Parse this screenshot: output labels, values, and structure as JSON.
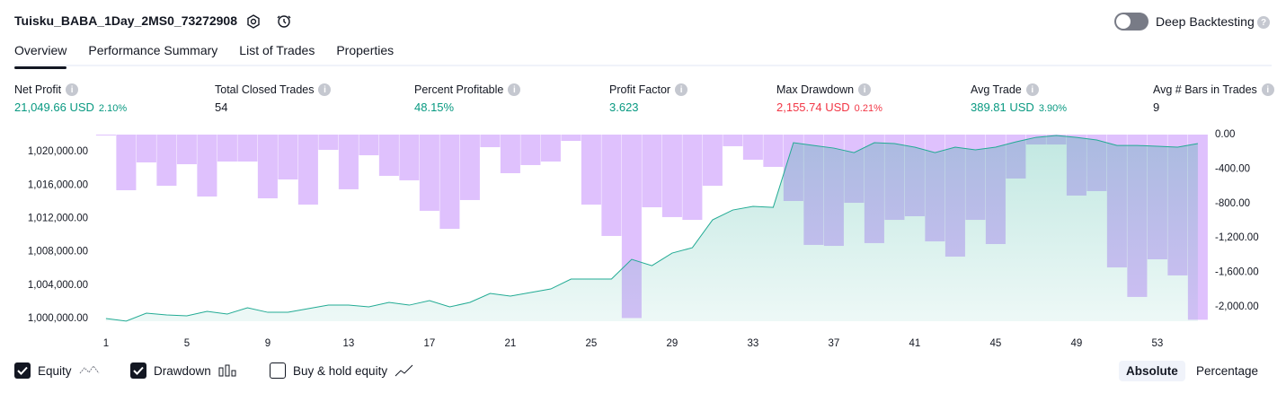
{
  "header": {
    "title": "Tuisku_BABA_1Day_2MS0_73272908",
    "toggle_label": "Deep Backtesting"
  },
  "tabs": [
    "Overview",
    "Performance Summary",
    "List of Trades",
    "Properties"
  ],
  "active_tab": 0,
  "metrics": [
    {
      "label": "Net Profit",
      "value": "21,049.66 USD",
      "percent": "2.10%",
      "color": "#089981"
    },
    {
      "label": "Total Closed Trades",
      "value": "54",
      "color": "#131722"
    },
    {
      "label": "Percent Profitable",
      "value": "48.15%",
      "color": "#089981"
    },
    {
      "label": "Profit Factor",
      "value": "3.623",
      "color": "#089981"
    },
    {
      "label": "Max Drawdown",
      "value": "2,155.74 USD",
      "percent": "0.21%",
      "color": "#f23645"
    },
    {
      "label": "Avg Trade",
      "value": "389.81 USD",
      "percent": "3.90%",
      "color": "#089981"
    },
    {
      "label": "Avg # Bars in Trades",
      "value": "9",
      "color": "#131722"
    }
  ],
  "chart_data": {
    "type": "combo",
    "x": [
      1,
      2,
      3,
      4,
      5,
      6,
      7,
      8,
      9,
      10,
      11,
      12,
      13,
      14,
      15,
      16,
      17,
      18,
      19,
      20,
      21,
      22,
      23,
      24,
      25,
      26,
      27,
      28,
      29,
      30,
      31,
      32,
      33,
      34,
      35,
      36,
      37,
      38,
      39,
      40,
      41,
      42,
      43,
      44,
      45,
      46,
      47,
      48,
      49,
      50,
      51,
      52,
      53,
      54,
      55
    ],
    "xlim": [
      0.56,
      55.36
    ],
    "xticks": [
      1,
      5,
      9,
      13,
      17,
      21,
      25,
      29,
      33,
      37,
      41,
      45,
      49,
      53
    ],
    "ylim": [
      999680,
      1022050
    ],
    "yticks": [
      {
        "value": 1000000,
        "label": "1,000,000.00"
      },
      {
        "value": 1004000,
        "label": "1,004,000.00"
      },
      {
        "value": 1008000,
        "label": "1,008,000.00"
      },
      {
        "value": 1012000,
        "label": "1,012,000.00"
      },
      {
        "value": 1016000,
        "label": "1,016,000.00"
      },
      {
        "value": 1020000,
        "label": "1,020,000.00"
      }
    ],
    "y2lim": [
      -2167,
      0
    ],
    "y2ticks": [
      {
        "value": 0,
        "label": "0.00"
      },
      {
        "value": -400,
        "label": "-400.00"
      },
      {
        "value": -800,
        "label": "-800.00"
      },
      {
        "value": -1200,
        "label": "-1,200.00"
      },
      {
        "value": -1600,
        "label": "-1,600.00"
      },
      {
        "value": -2000,
        "label": "-2,000.00"
      }
    ],
    "series": [
      {
        "name": "Equity",
        "kind": "line",
        "color": "#22ab94",
        "values": [
          1000000,
          999700,
          1000650,
          1000430,
          1000320,
          1000860,
          1000540,
          1001290,
          1000750,
          1000750,
          1001180,
          1001610,
          1001610,
          1001400,
          1001940,
          1001610,
          1002150,
          1001400,
          1001940,
          1003010,
          1002690,
          1003120,
          1003550,
          1004730,
          1004730,
          1004730,
          1007100,
          1006340,
          1007850,
          1008490,
          1011830,
          1013010,
          1013440,
          1013330,
          1021080,
          1020750,
          1020430,
          1019890,
          1021080,
          1020970,
          1020540,
          1019890,
          1020540,
          1020220,
          1020540,
          1021180,
          1021720,
          1021940,
          1021720,
          1021400,
          1020750,
          1020750,
          1020650,
          1020540,
          1020970
        ]
      },
      {
        "name": "Drawdown",
        "kind": "bar",
        "axis": "y2",
        "color": "#c084fc",
        "values": [
          -10,
          -646,
          -323,
          -594,
          -344,
          -719,
          -313,
          -313,
          -740,
          -521,
          -813,
          -177,
          -635,
          -240,
          -479,
          -531,
          -885,
          -1094,
          -760,
          -146,
          -448,
          -354,
          -313,
          -73,
          -813,
          -1177,
          -2130,
          -844,
          -958,
          -990,
          -594,
          -135,
          -292,
          -375,
          -771,
          -1281,
          -1292,
          -792,
          -1260,
          -990,
          -948,
          -1240,
          -1417,
          -990,
          -1271,
          -510,
          -115,
          -115,
          -708,
          -656,
          -1542,
          -1885,
          -1448,
          -1635,
          -2150
        ]
      }
    ]
  },
  "controls": {
    "buy_hold": "Buy & hold equity",
    "absolute": "Absolute",
    "percentage": "Percentage"
  }
}
